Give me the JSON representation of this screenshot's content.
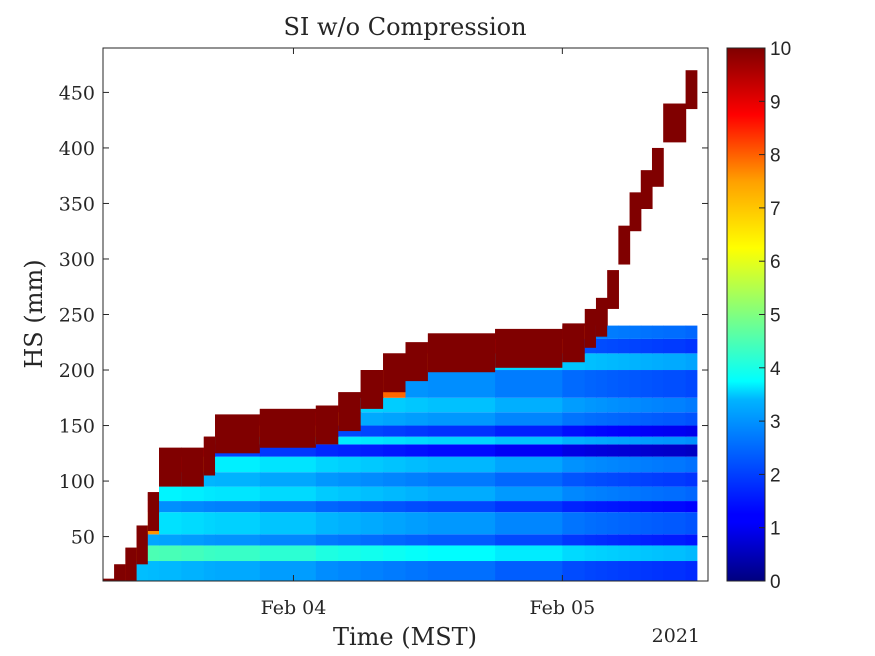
{
  "chart_data": {
    "type": "heatmap",
    "title": "SI w/o Compression",
    "xlabel": "Time (MST)",
    "ylabel": "HS (mm)",
    "x_secondary_label": "2021",
    "xlim": [
      "2021-02-03 07:00",
      "2021-02-05 13:00"
    ],
    "ylim": [
      10,
      490
    ],
    "x_ticks": [
      {
        "value": "2021-02-04 00:00",
        "label": "Feb 04"
      },
      {
        "value": "2021-02-05 00:00",
        "label": "Feb 05"
      }
    ],
    "y_ticks": [
      50,
      100,
      150,
      200,
      250,
      300,
      350,
      400,
      450
    ],
    "colorbar": {
      "colormap": "jet",
      "clim": [
        0,
        10
      ],
      "ticks": [
        0,
        1,
        2,
        3,
        4,
        5,
        6,
        7,
        8,
        9,
        10
      ]
    },
    "snow_height_top": [
      {
        "time": "2021-02-03 07:00",
        "hs": 12
      },
      {
        "time": "2021-02-03 08:00",
        "hs": 25
      },
      {
        "time": "2021-02-03 09:00",
        "hs": 40
      },
      {
        "time": "2021-02-03 10:00",
        "hs": 60
      },
      {
        "time": "2021-02-03 11:00",
        "hs": 90
      },
      {
        "time": "2021-02-03 12:00",
        "hs": 130
      },
      {
        "time": "2021-02-03 14:00",
        "hs": 130
      },
      {
        "time": "2021-02-03 16:00",
        "hs": 140
      },
      {
        "time": "2021-02-03 17:00",
        "hs": 160
      },
      {
        "time": "2021-02-03 21:00",
        "hs": 165
      },
      {
        "time": "2021-02-04 02:00",
        "hs": 168
      },
      {
        "time": "2021-02-04 04:00",
        "hs": 180
      },
      {
        "time": "2021-02-04 06:00",
        "hs": 200
      },
      {
        "time": "2021-02-04 08:00",
        "hs": 215
      },
      {
        "time": "2021-02-04 10:00",
        "hs": 225
      },
      {
        "time": "2021-02-04 12:00",
        "hs": 233
      },
      {
        "time": "2021-02-04 18:00",
        "hs": 237
      },
      {
        "time": "2021-02-05 00:00",
        "hs": 242
      },
      {
        "time": "2021-02-05 02:00",
        "hs": 255
      },
      {
        "time": "2021-02-05 03:00",
        "hs": 265
      },
      {
        "time": "2021-02-05 04:00",
        "hs": 290
      },
      {
        "time": "2021-02-05 05:00",
        "hs": 330
      },
      {
        "time": "2021-02-05 06:00",
        "hs": 360
      },
      {
        "time": "2021-02-05 07:00",
        "hs": 380
      },
      {
        "time": "2021-02-05 08:00",
        "hs": 400
      },
      {
        "time": "2021-02-05 09:00",
        "hs": 440
      },
      {
        "time": "2021-02-05 11:00",
        "hs": 470
      },
      {
        "time": "2021-02-05 12:00",
        "hs": 485
      }
    ],
    "layers": [
      {
        "base": 10,
        "top": 28,
        "si": 3.2
      },
      {
        "base": 28,
        "top": 42,
        "si": 4.6
      },
      {
        "base": 42,
        "top": 52,
        "si": 3.0
      },
      {
        "base": 52,
        "top": 72,
        "si": 3.6
      },
      {
        "base": 72,
        "top": 82,
        "si": 2.8
      },
      {
        "base": 82,
        "top": 95,
        "si": 3.8
      },
      {
        "base": 95,
        "top": 108,
        "si": 3.3
      },
      {
        "base": 108,
        "top": 122,
        "si": 3.9
      },
      {
        "base": 122,
        "top": 133,
        "si": 2.2
      },
      {
        "base": 133,
        "top": 140,
        "si": 4.2
      },
      {
        "base": 140,
        "top": 150,
        "si": 2.6
      },
      {
        "base": 150,
        "top": 162,
        "si": 3.6
      },
      {
        "base": 162,
        "top": 175,
        "si": 4.0
      },
      {
        "base": 175,
        "top": 200,
        "si": 3.5
      },
      {
        "base": 200,
        "top": 215,
        "si": 4.4
      },
      {
        "base": 215,
        "top": 228,
        "si": 3.3
      },
      {
        "base": 228,
        "top": 240,
        "si": 3.8
      }
    ],
    "surface_band_si": 10
  }
}
